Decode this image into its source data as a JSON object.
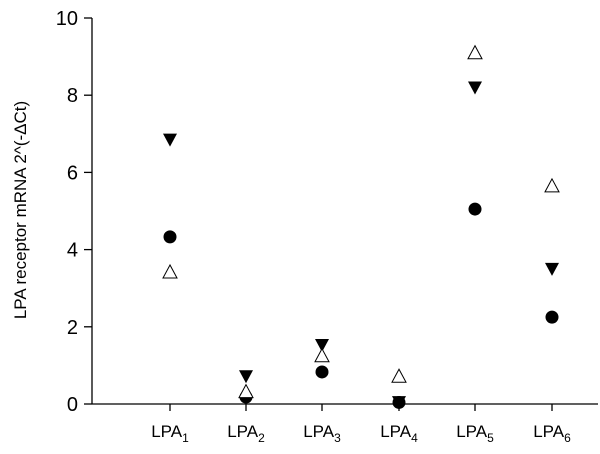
{
  "chart_data": {
    "type": "scatter",
    "title": "",
    "xlabel": "",
    "ylabel": "LPA receptor mRNA 2^(-ΔCt)",
    "ylim": [
      0,
      10
    ],
    "yticks": [
      0,
      2,
      4,
      6,
      8,
      10
    ],
    "grid": false,
    "categories": [
      {
        "base": "LPA",
        "sub": "1"
      },
      {
        "base": "LPA",
        "sub": "2"
      },
      {
        "base": "LPA",
        "sub": "3"
      },
      {
        "base": "LPA",
        "sub": "4"
      },
      {
        "base": "LPA",
        "sub": "5"
      },
      {
        "base": "LPA",
        "sub": "6"
      }
    ],
    "series": [
      {
        "marker": "circle-filled",
        "values": [
          4.33,
          0.18,
          0.83,
          0.04,
          5.05,
          2.25
        ]
      },
      {
        "marker": "triangle-down-filled",
        "values": [
          6.85,
          0.72,
          1.53,
          0.05,
          8.2,
          3.5
        ]
      },
      {
        "marker": "triangle-up-open",
        "values": [
          3.42,
          0.32,
          1.25,
          0.72,
          9.1,
          5.65
        ]
      }
    ]
  }
}
